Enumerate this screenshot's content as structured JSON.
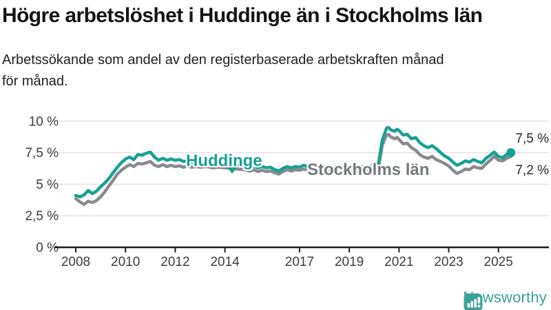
{
  "header": {
    "title": "Högre arbetslöshet i Huddinge än i Stockholms län",
    "subtitle": "Arbetssökande som andel av den registerbaserade arbetskraften månad för månad."
  },
  "footer": {
    "brand": "Newsworthy",
    "logo_icon": "bar-chart-speech-bubble-icon"
  },
  "colors": {
    "huddinge_teal": "#18a093",
    "stockholm_gray": "#888b8d",
    "stockholm_label_gray": "#75787b",
    "grid": "#e3e3e3",
    "axis": "#1d1d1d",
    "axis_text": "#3d3d3d",
    "end_label_text": "#262626",
    "logo_teal": "#3ba29a"
  },
  "chart_data": {
    "type": "line",
    "title": "Högre arbetslöshet i Huddinge än i Stockholms län",
    "subtitle": "Arbetssökande som andel av den registerbaserade arbetskraften månad för månad.",
    "xlabel": "",
    "ylabel": "",
    "unit": "%",
    "decimal_style": "comma",
    "grid": "horizontal",
    "legend_position": "inline-labels",
    "xlim": [
      2007.5,
      2026.2
    ],
    "ylim": [
      0,
      10.6
    ],
    "x_ticks": {
      "values": [
        2008,
        2010,
        2012,
        2014,
        2017,
        2019,
        2021,
        2023,
        2025
      ],
      "labels": [
        "2008",
        "2010",
        "2012",
        "2014",
        "2017",
        "2019",
        "2021",
        "2023",
        "2025"
      ]
    },
    "y_ticks": {
      "values": [
        10,
        7.5,
        5,
        2.5,
        0
      ],
      "labels": [
        "10 %",
        "7,5 %",
        "5 %",
        "2,5 %",
        "0 %"
      ]
    },
    "series": [
      {
        "name": "Huddinge",
        "color": "#18a093",
        "end_label": "7,5 %",
        "end_value": 7.5,
        "end_dot": true,
        "points": [
          [
            2008.0,
            4.1
          ],
          [
            2008.17,
            4.0
          ],
          [
            2008.33,
            4.15
          ],
          [
            2008.5,
            4.5
          ],
          [
            2008.67,
            4.25
          ],
          [
            2008.83,
            4.45
          ],
          [
            2009.0,
            4.8
          ],
          [
            2009.17,
            5.1
          ],
          [
            2009.33,
            5.45
          ],
          [
            2009.5,
            5.9
          ],
          [
            2009.67,
            6.35
          ],
          [
            2009.83,
            6.7
          ],
          [
            2010.0,
            7.0
          ],
          [
            2010.17,
            7.15
          ],
          [
            2010.33,
            6.95
          ],
          [
            2010.5,
            7.35
          ],
          [
            2010.67,
            7.3
          ],
          [
            2010.83,
            7.45
          ],
          [
            2011.0,
            7.55
          ],
          [
            2011.17,
            7.15
          ],
          [
            2011.33,
            6.9
          ],
          [
            2011.5,
            7.05
          ],
          [
            2011.67,
            6.9
          ],
          [
            2011.83,
            7.0
          ],
          [
            2012.0,
            6.9
          ],
          [
            2012.17,
            6.95
          ],
          [
            2012.33,
            6.8
          ],
          [
            2012.5,
            6.85
          ],
          [
            2012.67,
            6.75
          ],
          [
            2012.83,
            6.8
          ],
          [
            2013.0,
            6.7
          ],
          [
            2013.25,
            6.75
          ],
          [
            2013.5,
            6.65
          ],
          [
            2013.75,
            6.6
          ],
          [
            2014.0,
            6.65
          ],
          [
            2014.25,
            6.55
          ],
          [
            2014.5,
            6.5
          ],
          [
            2014.75,
            6.45
          ],
          [
            2015.0,
            6.35
          ],
          [
            2015.17,
            6.45
          ],
          [
            2015.33,
            6.3
          ],
          [
            2015.5,
            6.4
          ],
          [
            2015.67,
            6.3
          ],
          [
            2015.83,
            6.35
          ],
          [
            2016.0,
            6.15
          ],
          [
            2016.17,
            6.05
          ],
          [
            2016.33,
            6.25
          ],
          [
            2016.5,
            6.4
          ],
          [
            2016.67,
            6.3
          ],
          [
            2016.83,
            6.4
          ],
          [
            2017.0,
            6.35
          ],
          [
            2017.17,
            6.5
          ],
          [
            2017.33,
            6.4
          ],
          [
            2017.5,
            6.55
          ],
          [
            2017.67,
            6.45
          ],
          [
            2017.83,
            6.5
          ],
          [
            2018.0,
            6.4
          ],
          [
            2018.17,
            6.45
          ],
          [
            2018.33,
            6.3
          ],
          [
            2018.5,
            6.4
          ],
          [
            2018.67,
            6.25
          ],
          [
            2018.83,
            6.35
          ],
          [
            2019.0,
            6.3
          ],
          [
            2019.17,
            6.4
          ],
          [
            2019.33,
            6.3
          ],
          [
            2019.5,
            6.4
          ],
          [
            2019.67,
            6.35
          ],
          [
            2019.83,
            6.45
          ],
          [
            2020.0,
            6.4
          ],
          [
            2020.17,
            6.55
          ],
          [
            2020.33,
            8.5
          ],
          [
            2020.5,
            9.45
          ],
          [
            2020.58,
            9.5
          ],
          [
            2020.67,
            9.3
          ],
          [
            2020.83,
            9.2
          ],
          [
            2020.92,
            9.35
          ],
          [
            2021.0,
            9.25
          ],
          [
            2021.17,
            8.9
          ],
          [
            2021.33,
            8.95
          ],
          [
            2021.5,
            8.6
          ],
          [
            2021.67,
            8.7
          ],
          [
            2021.83,
            8.3
          ],
          [
            2022.0,
            8.05
          ],
          [
            2022.17,
            7.9
          ],
          [
            2022.33,
            8.05
          ],
          [
            2022.5,
            7.8
          ],
          [
            2022.67,
            7.5
          ],
          [
            2022.83,
            7.25
          ],
          [
            2023.0,
            7.05
          ],
          [
            2023.17,
            6.75
          ],
          [
            2023.33,
            6.5
          ],
          [
            2023.5,
            6.65
          ],
          [
            2023.67,
            6.85
          ],
          [
            2023.83,
            6.75
          ],
          [
            2024.0,
            6.95
          ],
          [
            2024.17,
            6.8
          ],
          [
            2024.33,
            6.7
          ],
          [
            2024.5,
            7.05
          ],
          [
            2024.67,
            7.3
          ],
          [
            2024.83,
            7.55
          ],
          [
            2025.0,
            7.2
          ],
          [
            2025.17,
            7.1
          ],
          [
            2025.33,
            7.35
          ],
          [
            2025.5,
            7.5
          ]
        ]
      },
      {
        "name": "Stockholms län",
        "color": "#888b8d",
        "end_label": "7,2 %",
        "end_value": 7.2,
        "end_dot": false,
        "points": [
          [
            2008.0,
            3.85
          ],
          [
            2008.17,
            3.6
          ],
          [
            2008.33,
            3.4
          ],
          [
            2008.5,
            3.65
          ],
          [
            2008.67,
            3.55
          ],
          [
            2008.83,
            3.7
          ],
          [
            2009.0,
            4.0
          ],
          [
            2009.17,
            4.4
          ],
          [
            2009.33,
            4.85
          ],
          [
            2009.5,
            5.3
          ],
          [
            2009.67,
            5.8
          ],
          [
            2009.83,
            6.1
          ],
          [
            2010.0,
            6.35
          ],
          [
            2010.17,
            6.55
          ],
          [
            2010.33,
            6.4
          ],
          [
            2010.5,
            6.65
          ],
          [
            2010.67,
            6.6
          ],
          [
            2010.83,
            6.7
          ],
          [
            2011.0,
            6.8
          ],
          [
            2011.17,
            6.5
          ],
          [
            2011.33,
            6.4
          ],
          [
            2011.5,
            6.55
          ],
          [
            2011.67,
            6.4
          ],
          [
            2011.83,
            6.5
          ],
          [
            2012.0,
            6.4
          ],
          [
            2012.17,
            6.45
          ],
          [
            2012.33,
            6.35
          ],
          [
            2012.5,
            6.45
          ],
          [
            2012.67,
            6.35
          ],
          [
            2012.83,
            6.4
          ],
          [
            2013.0,
            6.35
          ],
          [
            2013.25,
            6.4
          ],
          [
            2013.5,
            6.3
          ],
          [
            2013.75,
            6.35
          ],
          [
            2014.0,
            6.3
          ],
          [
            2014.25,
            6.25
          ],
          [
            2014.5,
            6.2
          ],
          [
            2014.75,
            6.15
          ],
          [
            2015.0,
            6.05
          ],
          [
            2015.17,
            6.15
          ],
          [
            2015.33,
            6.0
          ],
          [
            2015.5,
            6.1
          ],
          [
            2015.67,
            6.0
          ],
          [
            2015.83,
            6.05
          ],
          [
            2016.0,
            5.9
          ],
          [
            2016.17,
            5.8
          ],
          [
            2016.33,
            6.0
          ],
          [
            2016.5,
            6.15
          ],
          [
            2016.67,
            6.05
          ],
          [
            2016.83,
            6.15
          ],
          [
            2017.0,
            6.1
          ],
          [
            2017.17,
            6.2
          ],
          [
            2017.33,
            6.1
          ],
          [
            2017.5,
            6.25
          ],
          [
            2017.67,
            6.15
          ],
          [
            2017.83,
            6.2
          ],
          [
            2018.0,
            6.1
          ],
          [
            2018.17,
            6.15
          ],
          [
            2018.33,
            6.0
          ],
          [
            2018.5,
            6.1
          ],
          [
            2018.67,
            5.95
          ],
          [
            2018.83,
            6.05
          ],
          [
            2019.0,
            6.0
          ],
          [
            2019.17,
            6.1
          ],
          [
            2019.33,
            6.0
          ],
          [
            2019.5,
            6.1
          ],
          [
            2019.67,
            6.05
          ],
          [
            2019.83,
            6.15
          ],
          [
            2020.0,
            6.1
          ],
          [
            2020.17,
            6.25
          ],
          [
            2020.33,
            8.1
          ],
          [
            2020.5,
            8.9
          ],
          [
            2020.58,
            8.95
          ],
          [
            2020.67,
            8.75
          ],
          [
            2020.83,
            8.6
          ],
          [
            2020.92,
            8.7
          ],
          [
            2021.0,
            8.55
          ],
          [
            2021.17,
            8.2
          ],
          [
            2021.33,
            8.25
          ],
          [
            2021.5,
            7.9
          ],
          [
            2021.67,
            7.7
          ],
          [
            2021.83,
            7.35
          ],
          [
            2022.0,
            7.15
          ],
          [
            2022.17,
            7.05
          ],
          [
            2022.33,
            7.2
          ],
          [
            2022.5,
            6.95
          ],
          [
            2022.67,
            6.8
          ],
          [
            2022.83,
            6.65
          ],
          [
            2023.0,
            6.45
          ],
          [
            2023.17,
            6.1
          ],
          [
            2023.33,
            5.85
          ],
          [
            2023.5,
            6.0
          ],
          [
            2023.67,
            6.2
          ],
          [
            2023.83,
            6.15
          ],
          [
            2024.0,
            6.4
          ],
          [
            2024.17,
            6.3
          ],
          [
            2024.33,
            6.25
          ],
          [
            2024.5,
            6.6
          ],
          [
            2024.67,
            6.9
          ],
          [
            2024.83,
            7.2
          ],
          [
            2025.0,
            6.9
          ],
          [
            2025.17,
            6.85
          ],
          [
            2025.33,
            7.05
          ],
          [
            2025.5,
            7.2
          ]
        ]
      }
    ]
  }
}
